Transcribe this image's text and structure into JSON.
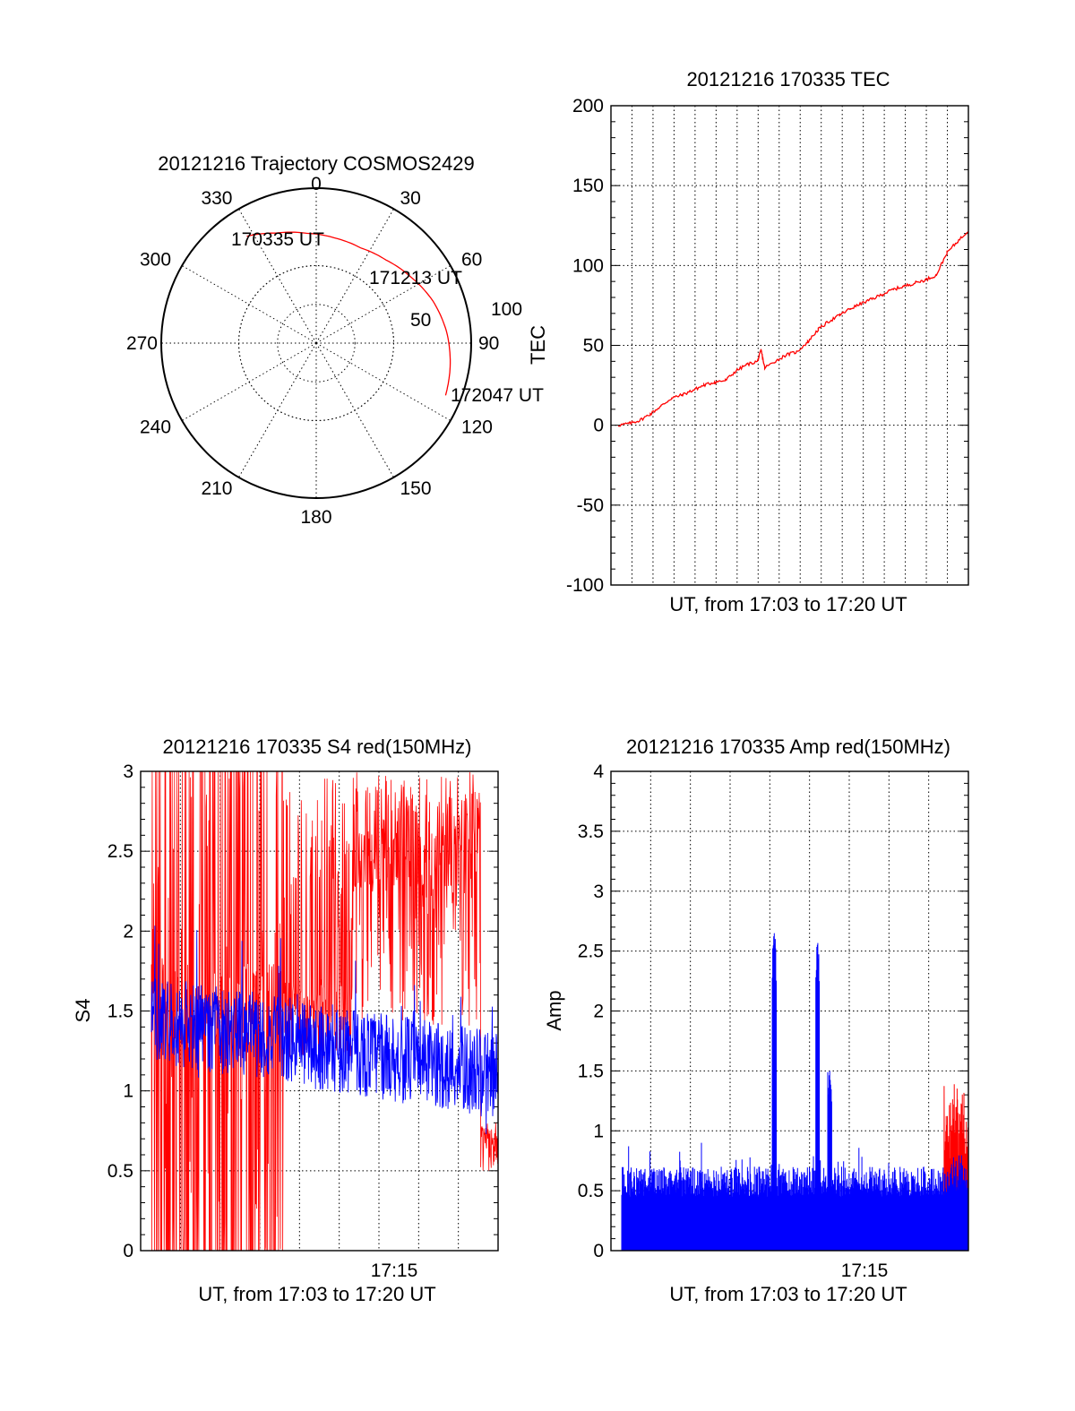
{
  "chart_data": [
    {
      "id": "trajectory",
      "type": "polar",
      "title": "20121216 Trajectory COSMOS2429",
      "azimuth_labels": [
        "0",
        "30",
        "60",
        "90",
        "120",
        "150",
        "180",
        "210",
        "240",
        "270",
        "300",
        "330"
      ],
      "radius_labels": [
        "50",
        "100"
      ],
      "series": [
        {
          "color": "#ff0000",
          "points": [
            {
              "az": 327,
              "elev": 16
            },
            {
              "az": 340,
              "elev": 22
            },
            {
              "az": 355,
              "elev": 26
            },
            {
              "az": 10,
              "elev": 28
            },
            {
              "az": 25,
              "elev": 29
            },
            {
              "az": 40,
              "elev": 27
            },
            {
              "az": 55,
              "elev": 23
            },
            {
              "az": 70,
              "elev": 18
            },
            {
              "az": 85,
              "elev": 14
            },
            {
              "az": 100,
              "elev": 11
            },
            {
              "az": 112,
              "elev": 9
            }
          ]
        }
      ],
      "annotations": [
        {
          "text": "170335 UT",
          "az": 327,
          "elev": 16
        },
        {
          "text": "171213 UT",
          "az": 55,
          "elev": 23
        },
        {
          "text": "172047 UT",
          "az": 112,
          "elev": 9
        }
      ]
    },
    {
      "id": "tec",
      "type": "line",
      "title": "20121216 170335 TEC",
      "xlabel": "UT, from 17:03 to 17:20 UT",
      "ylabel": "TEC",
      "ylim": [
        -100,
        200
      ],
      "yticks": [
        "200",
        "150",
        "100",
        "50",
        "0",
        "-50",
        "-100"
      ],
      "xtick_labels": [],
      "grid": true,
      "series": [
        {
          "color": "#ff0000",
          "points": [
            [
              0.02,
              0
            ],
            [
              0.05,
              1
            ],
            [
              0.08,
              3
            ],
            [
              0.11,
              7
            ],
            [
              0.14,
              12
            ],
            [
              0.17,
              17
            ],
            [
              0.2,
              19
            ],
            [
              0.23,
              22
            ],
            [
              0.26,
              25
            ],
            [
              0.29,
              27
            ],
            [
              0.32,
              28
            ],
            [
              0.35,
              34
            ],
            [
              0.38,
              38
            ],
            [
              0.41,
              40
            ],
            [
              0.42,
              47
            ],
            [
              0.43,
              36
            ],
            [
              0.46,
              40
            ],
            [
              0.49,
              44
            ],
            [
              0.52,
              46
            ],
            [
              0.55,
              52
            ],
            [
              0.58,
              60
            ],
            [
              0.61,
              65
            ],
            [
              0.64,
              69
            ],
            [
              0.67,
              73
            ],
            [
              0.7,
              76
            ],
            [
              0.73,
              79
            ],
            [
              0.76,
              82
            ],
            [
              0.79,
              85
            ],
            [
              0.82,
              87
            ],
            [
              0.85,
              89
            ],
            [
              0.88,
              91
            ],
            [
              0.91,
              94
            ],
            [
              0.94,
              108
            ],
            [
              0.97,
              115
            ],
            [
              1.0,
              122
            ]
          ]
        }
      ]
    },
    {
      "id": "s4",
      "type": "line",
      "title": "20121216 170335 S4 red(150MHz)",
      "xlabel": "UT, from 17:03 to 17:20 UT",
      "ylabel": "S4",
      "ylim": [
        0,
        3
      ],
      "yticks": [
        "3",
        "2.5",
        "2",
        "1.5",
        "1",
        "0.5",
        "0"
      ],
      "xtick_labels": [
        "17:15"
      ],
      "grid": true,
      "series": [
        {
          "color": "#ff0000",
          "style": "high-variance-noise",
          "description": "red channel"
        },
        {
          "color": "#0000ff",
          "style": "noise",
          "mean_start": 1.45,
          "mean_end": 1.1
        }
      ]
    },
    {
      "id": "amp",
      "type": "line",
      "title": "20121216 170335 Amp red(150MHz)",
      "xlabel": "UT, from 17:03 to 17:20 UT",
      "ylabel": "Amp",
      "ylim": [
        0,
        4
      ],
      "yticks": [
        "4",
        "3.5",
        "3",
        "2.5",
        "2",
        "1.5",
        "1",
        "0.5",
        "0"
      ],
      "xtick_labels": [
        "17:15"
      ],
      "grid": true,
      "series": [
        {
          "color": "#0000ff",
          "style": "noise-filled",
          "spikes": [
            [
              0.44,
              2.65
            ],
            [
              0.565,
              2.6
            ],
            [
              0.6,
              1.5
            ]
          ]
        },
        {
          "color": "#ff0000",
          "style": "tail",
          "spikes": [
            [
              0.97,
              1.4
            ]
          ]
        }
      ]
    }
  ]
}
